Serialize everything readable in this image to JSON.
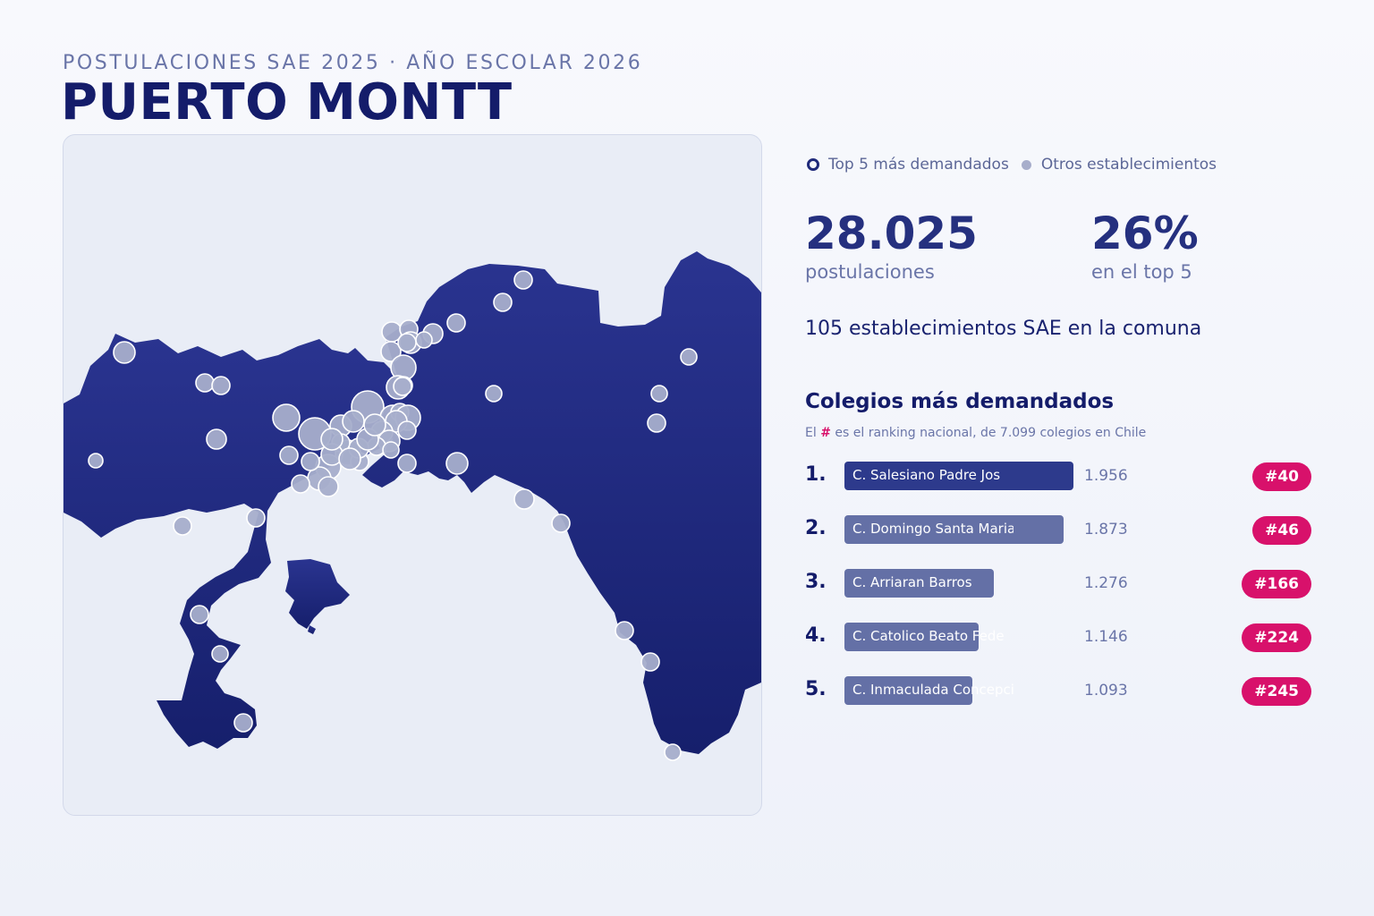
{
  "header": {
    "subtitle": "POSTULACIONES SAE 2025 · AÑO ESCOLAR 2026",
    "title": "PUERTO MONTT"
  },
  "legend": {
    "top5_label": "Top 5 más demandados",
    "others_label": "Otros establecimientos"
  },
  "kpis": {
    "applications_value": "28.025",
    "applications_label": "postulaciones",
    "top5_share_value": "26%",
    "top5_share_label": "en el top 5"
  },
  "establishments_line": "105 establecimientos SAE en la comuna",
  "ranking": {
    "title": "Colegios más demandados",
    "note_prefix": "El",
    "note_hash": "#",
    "note_suffix": "es el ranking nacional, de 7.099 colegios en Chile",
    "items": [
      {
        "rank": "1.",
        "name": "C. Salesiano Padre Jos",
        "applications": 1956,
        "applications_label": "1.956",
        "national_rank": "#40"
      },
      {
        "rank": "2.",
        "name": "C. Domingo Santa Maria",
        "applications": 1873,
        "applications_label": "1.873",
        "national_rank": "#46"
      },
      {
        "rank": "3.",
        "name": "C. Arriaran Barros",
        "applications": 1276,
        "applications_label": "1.276",
        "national_rank": "#166"
      },
      {
        "rank": "4.",
        "name": "C. Catolico Beato Fede",
        "applications": 1146,
        "applications_label": "1.146",
        "national_rank": "#224"
      },
      {
        "rank": "5.",
        "name": "C. Inmaculada Concepci",
        "applications": 1093,
        "applications_label": "1.093",
        "national_rank": "#245"
      }
    ]
  },
  "colors": {
    "land": "#1f2a7a",
    "water": "#e9edf6",
    "bar_top1": "#2d3a8c",
    "bar_other": "#6470a6",
    "badge": "#d8116b",
    "other_dot": "#a7aecb"
  }
}
